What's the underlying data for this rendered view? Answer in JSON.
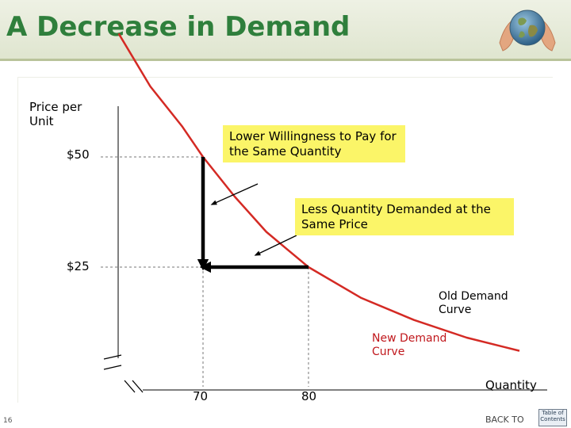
{
  "header": {
    "title": "A Decrease in Demand"
  },
  "callouts": {
    "willingness": "Lower Willingness to Pay for the Same Quantity",
    "quantity": "Less Quantity Demanded at the Same Price"
  },
  "colors": {
    "title": "#2f7f3c",
    "curve": "#d42a24",
    "callout_bg": "#fbf568",
    "new_curve_label": "#c0171c"
  },
  "footer": {
    "page_number": "16",
    "back_to": "BACK TO",
    "toc_label": "Table of Contents"
  },
  "chart_data": {
    "type": "line",
    "title": "",
    "ylabel": "Price per Unit",
    "xlabel": "Quantity",
    "x_ticks": [
      "70",
      "80"
    ],
    "y_ticks": [
      "$50",
      "$25"
    ],
    "series": [
      {
        "name": "Old Demand Curve",
        "color": "#d42a24",
        "points": [
          [
            62,
            78
          ],
          [
            65,
            66
          ],
          [
            68,
            57
          ],
          [
            70,
            50
          ],
          [
            73,
            41
          ],
          [
            76,
            33
          ],
          [
            78,
            29
          ],
          [
            80,
            25
          ],
          [
            85,
            18
          ],
          [
            90,
            13
          ],
          [
            95,
            9
          ],
          [
            100,
            6
          ]
        ]
      }
    ],
    "labels": {
      "old_curve": "Old Demand Curve",
      "new_curve": "New Demand Curve"
    },
    "reference_points": [
      {
        "x": 70,
        "y": 50
      },
      {
        "x": 80,
        "y": 25
      },
      {
        "x": 70,
        "y": 25
      }
    ],
    "arrows": [
      {
        "from": [
          70,
          50
        ],
        "to": [
          70,
          25
        ],
        "meaning": "Lower Willingness to Pay for the Same Quantity"
      },
      {
        "from": [
          80,
          25
        ],
        "to": [
          70,
          25
        ],
        "meaning": "Less Quantity Demanded at the Same Price"
      }
    ],
    "grid": false
  }
}
